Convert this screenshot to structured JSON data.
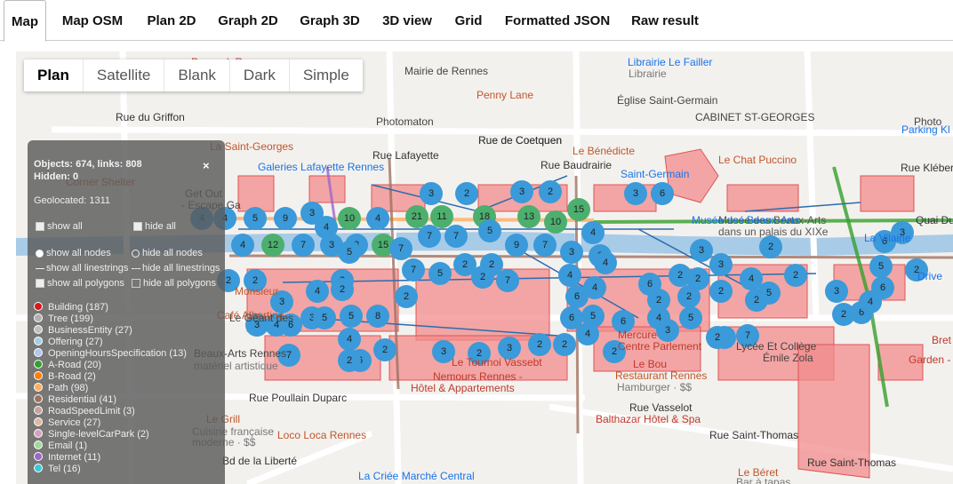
{
  "tabs": [
    "Map",
    "Map OSM",
    "Plan 2D",
    "Graph 2D",
    "Graph 3D",
    "3D view",
    "Grid",
    "Formatted JSON",
    "Raw result"
  ],
  "active_tab": "Map",
  "map_types": [
    "Plan",
    "Satellite",
    "Blank",
    "Dark",
    "Simple"
  ],
  "panel": {
    "objects_line": "Objects: 674, links: 808",
    "hidden_line": "Hidden: 0",
    "geolocated_line": "Geolocated: 1311",
    "close": "×",
    "show_all": "show all",
    "hide_all": "hide all",
    "show_all_nodes": "show all nodes",
    "hide_all_nodes": "hide all nodes",
    "show_all_linestrings": "show all linestrings",
    "hide_all_linestrings": "hide all linestrings",
    "show_all_polygons": "show all polygons",
    "hide_all_polygons": "hide all polygons",
    "legend": [
      {
        "label": "Building (187)",
        "color": "#d7191c"
      },
      {
        "label": "Tree (199)",
        "color": "#b0b0b0"
      },
      {
        "label": "BusinessEntity (27)",
        "color": "#c0c0c0"
      },
      {
        "label": "Offering (27)",
        "color": "#a6cee3"
      },
      {
        "label": "OpeningHoursSpecification (13)",
        "color": "#b2c6ee"
      },
      {
        "label": "A-Road (20)",
        "color": "#33a02c"
      },
      {
        "label": "B-Road (2)",
        "color": "#ff7f00"
      },
      {
        "label": "Path (98)",
        "color": "#fdae61"
      },
      {
        "label": "Residential (41)",
        "color": "#a07060"
      },
      {
        "label": "RoadSpeedLimit (3)",
        "color": "#c9a0a0"
      },
      {
        "label": "Service (27)",
        "color": "#e0b8a0"
      },
      {
        "label": "Single-levelCarPark (2)",
        "color": "#d9a0c0"
      },
      {
        "label": "Email (1)",
        "color": "#a1d99b"
      },
      {
        "label": "Internet (11)",
        "color": "#9e66c7"
      },
      {
        "label": "Tel (16)",
        "color": "#3ec9d6"
      }
    ]
  },
  "map_labels": [
    {
      "text": "Peacock Rennes",
      "color": "#c0392b"
    },
    {
      "text": "Mairie de Rennes",
      "color": "#444"
    },
    {
      "text": "Librairie Le Failler",
      "color": "#1a73e8"
    },
    {
      "text": "Librairie",
      "color": "#777"
    },
    {
      "text": "Penny Lane",
      "color": "#c0562b"
    },
    {
      "text": "Église Saint-Germain",
      "color": "#444"
    },
    {
      "text": "CABINET ST-GEORGES",
      "color": "#444"
    },
    {
      "text": "Parking Kl",
      "color": "#1a73e8"
    },
    {
      "text": "Rue du Griffon",
      "color": "#333"
    },
    {
      "text": "Photomaton",
      "color": "#444"
    },
    {
      "text": "Rue de Coetquen",
      "color": "#333"
    },
    {
      "text": "Le Bénédicte",
      "color": "#c0562b"
    },
    {
      "text": "Le Chat Puccino",
      "color": "#c0562b"
    },
    {
      "text": "La Saint-Georges",
      "color": "#c0562b"
    },
    {
      "text": "Galeries Lafayette Rennes",
      "color": "#1a73e8"
    },
    {
      "text": "Rue Kléber",
      "color": "#333"
    },
    {
      "text": "Saint-Germain",
      "color": "#1a73e8"
    },
    {
      "text": "La Vilaine",
      "color": "#1a73e8"
    },
    {
      "text": "Quai Du",
      "color": "#333"
    },
    {
      "text": "Musée des Beaux-Arts",
      "color": "#555"
    },
    {
      "text": "dans un palais du XIXe",
      "color": "#555"
    },
    {
      "text": "Café Albertine",
      "color": "#c0562b"
    },
    {
      "text": "Le Géant des",
      "color": "#444"
    },
    {
      "text": "Beaux-Arts Rennes",
      "color": "#444"
    },
    {
      "text": "matériel artistique",
      "color": "#777"
    },
    {
      "text": "Mercure",
      "color": "#c0392b"
    },
    {
      "text": "Centre Parlement",
      "color": "#c0392b"
    },
    {
      "text": "Lycée Et Collège",
      "color": "#444"
    },
    {
      "text": "Émile Zola",
      "color": "#444"
    },
    {
      "text": "Garden -",
      "color": "#c0392b"
    },
    {
      "text": "Le Tournoi Vassebt",
      "color": "#c0392b"
    },
    {
      "text": "Nemours Rennes -",
      "color": "#c0392b"
    },
    {
      "text": "Hôtel & Appartements",
      "color": "#c0392b"
    },
    {
      "text": "Restaurant Rennes",
      "color": "#c0562b"
    },
    {
      "text": "Hamburger · $$",
      "color": "#777"
    },
    {
      "text": "Rue Poullain Duparc",
      "color": "#333"
    },
    {
      "text": "Rue Vasselot",
      "color": "#333"
    },
    {
      "text": "Balthazar Hôtel & Spa",
      "color": "#c0392b"
    },
    {
      "text": "Le Grill",
      "color": "#c0562b"
    },
    {
      "text": "Cuisine française",
      "color": "#777"
    },
    {
      "text": "moderne · $$",
      "color": "#777"
    },
    {
      "text": "Loco Loca Rennes",
      "color": "#c0562b"
    },
    {
      "text": "Rue Saint-Thomas",
      "color": "#333"
    },
    {
      "text": "Rue Saint-Thomas",
      "color": "#333"
    },
    {
      "text": "Le Béret",
      "color": "#c0562b"
    },
    {
      "text": "Bar à tapas",
      "color": "#777"
    },
    {
      "text": "La Criée Marché Central",
      "color": "#1a73e8"
    },
    {
      "text": "Bd de la Liberté",
      "color": "#333"
    },
    {
      "text": "Rue Lafayette",
      "color": "#333"
    },
    {
      "text": "Rue Baudrairie",
      "color": "#333"
    },
    {
      "text": "Photo",
      "color": "#444"
    },
    {
      "text": "Drive",
      "color": "#1a73e8"
    },
    {
      "text": "Bret",
      "color": "#c0392b"
    },
    {
      "text": "Monsieur",
      "color": "#c0562b"
    },
    {
      "text": "Get Out",
      "color": "#444"
    },
    {
      "text": "- Escape Ga",
      "color": "#444"
    },
    {
      "text": "Corner Shelter",
      "color": "#c0562b"
    },
    {
      "text": "Le Bou",
      "color": "#c0392b"
    },
    {
      "text": "Rue de Coetquen",
      "color": "#333"
    },
    {
      "text": "Musée des Beaux-Arts",
      "color": "#1a73e8"
    }
  ],
  "markers": [
    {
      "n": "4",
      "c": "#3b9ad9"
    },
    {
      "n": "4",
      "c": "#3b9ad9"
    },
    {
      "n": "5",
      "c": "#3b9ad9"
    },
    {
      "n": "9",
      "c": "#3b9ad9"
    },
    {
      "n": "3",
      "c": "#3b9ad9"
    },
    {
      "n": "4",
      "c": "#3b9ad9"
    },
    {
      "n": "10",
      "c": "#4caf6e"
    },
    {
      "n": "4",
      "c": "#3b9ad9"
    },
    {
      "n": "21",
      "c": "#4caf6e"
    },
    {
      "n": "11",
      "c": "#4caf6e"
    },
    {
      "n": "18",
      "c": "#4caf6e"
    },
    {
      "n": "13",
      "c": "#4caf6e"
    },
    {
      "n": "10",
      "c": "#4caf6e"
    },
    {
      "n": "15",
      "c": "#4caf6e"
    },
    {
      "n": "3",
      "c": "#3b9ad9"
    },
    {
      "n": "2",
      "c": "#3b9ad9"
    },
    {
      "n": "3",
      "c": "#3b9ad9"
    },
    {
      "n": "2",
      "c": "#3b9ad9"
    },
    {
      "n": "3",
      "c": "#3b9ad9"
    },
    {
      "n": "6",
      "c": "#3b9ad9"
    },
    {
      "n": "4",
      "c": "#3b9ad9"
    },
    {
      "n": "12",
      "c": "#4caf6e"
    },
    {
      "n": "7",
      "c": "#3b9ad9"
    },
    {
      "n": "3",
      "c": "#3b9ad9"
    },
    {
      "n": "8",
      "c": "#3b9ad9"
    },
    {
      "n": "15",
      "c": "#4caf6e"
    },
    {
      "n": "7",
      "c": "#3b9ad9"
    },
    {
      "n": "7",
      "c": "#3b9ad9"
    },
    {
      "n": "7",
      "c": "#3b9ad9"
    },
    {
      "n": "5",
      "c": "#3b9ad9"
    },
    {
      "n": "9",
      "c": "#3b9ad9"
    },
    {
      "n": "7",
      "c": "#3b9ad9"
    },
    {
      "n": "3",
      "c": "#3b9ad9"
    },
    {
      "n": "4",
      "c": "#3b9ad9"
    },
    {
      "n": "6",
      "c": "#3b9ad9"
    },
    {
      "n": "2",
      "c": "#3b9ad9"
    },
    {
      "n": "2",
      "c": "#3b9ad9"
    },
    {
      "n": "5",
      "c": "#3b9ad9"
    },
    {
      "n": "2",
      "c": "#3b9ad9"
    },
    {
      "n": "7",
      "c": "#3b9ad9"
    },
    {
      "n": "5",
      "c": "#3b9ad9"
    },
    {
      "n": "3",
      "c": "#3b9ad9"
    },
    {
      "n": "4",
      "c": "#3b9ad9"
    },
    {
      "n": "3",
      "c": "#3b9ad9"
    },
    {
      "n": "6",
      "c": "#3b9ad9"
    },
    {
      "n": "5",
      "c": "#3b9ad9"
    },
    {
      "n": "5",
      "c": "#3b9ad9"
    },
    {
      "n": "8",
      "c": "#3b9ad9"
    },
    {
      "n": "7",
      "c": "#3b9ad9"
    },
    {
      "n": "2",
      "c": "#3b9ad9"
    },
    {
      "n": "4",
      "c": "#3b9ad9"
    },
    {
      "n": "4",
      "c": "#3b9ad9"
    },
    {
      "n": "4",
      "c": "#3b9ad9"
    },
    {
      "n": "6",
      "c": "#3b9ad9"
    },
    {
      "n": "5",
      "c": "#3b9ad9"
    },
    {
      "n": "6",
      "c": "#3b9ad9"
    },
    {
      "n": "4",
      "c": "#3b9ad9"
    },
    {
      "n": "2",
      "c": "#3b9ad9"
    },
    {
      "n": "6",
      "c": "#3b9ad9"
    },
    {
      "n": "6",
      "c": "#3b9ad9"
    },
    {
      "n": "2",
      "c": "#3b9ad9"
    },
    {
      "n": "3",
      "c": "#3b9ad9"
    },
    {
      "n": "2",
      "c": "#3b9ad9"
    },
    {
      "n": "2",
      "c": "#3b9ad9"
    },
    {
      "n": "2",
      "c": "#3b9ad9"
    },
    {
      "n": "2",
      "c": "#3b9ad9"
    },
    {
      "n": "3",
      "c": "#3b9ad9"
    },
    {
      "n": "3",
      "c": "#3b9ad9"
    },
    {
      "n": "4",
      "c": "#3b9ad9"
    },
    {
      "n": "2",
      "c": "#3b9ad9"
    },
    {
      "n": "2",
      "c": "#3b9ad9"
    },
    {
      "n": "3",
      "c": "#3b9ad9"
    },
    {
      "n": "2",
      "c": "#3b9ad9"
    },
    {
      "n": "6",
      "c": "#3b9ad9"
    },
    {
      "n": "4",
      "c": "#3b9ad9"
    },
    {
      "n": "6",
      "c": "#3b9ad9"
    },
    {
      "n": "5",
      "c": "#3b9ad9"
    },
    {
      "n": "6",
      "c": "#3b9ad9"
    },
    {
      "n": "3",
      "c": "#3b9ad9"
    },
    {
      "n": "2",
      "c": "#3b9ad9"
    },
    {
      "n": "2",
      "c": "#3b9ad9"
    },
    {
      "n": "5",
      "c": "#3b9ad9"
    },
    {
      "n": "5",
      "c": "#3b9ad9"
    },
    {
      "n": "7",
      "c": "#3b9ad9"
    },
    {
      "n": "2",
      "c": "#3b9ad9"
    },
    {
      "n": "2",
      "c": "#3b9ad9"
    },
    {
      "n": "4",
      "c": "#3b9ad9"
    },
    {
      "n": "2",
      "c": "#3b9ad9"
    },
    {
      "n": "2",
      "c": "#3b9ad9"
    },
    {
      "n": "3",
      "c": "#3b9ad9"
    },
    {
      "n": "2",
      "c": "#3b9ad9"
    },
    {
      "n": "3",
      "c": "#3b9ad9"
    },
    {
      "n": "4",
      "c": "#3b9ad9"
    },
    {
      "n": "6",
      "c": "#3b9ad9"
    },
    {
      "n": "2",
      "c": "#3b9ad9"
    },
    {
      "n": "2",
      "c": "#3b9ad9"
    },
    {
      "n": "7",
      "c": "#3b9ad9"
    },
    {
      "n": "3",
      "c": "#3b9ad9"
    },
    {
      "n": "2",
      "c": "#3b9ad9"
    },
    {
      "n": "2",
      "c": "#3b9ad9"
    },
    {
      "n": "3",
      "c": "#3b9ad9"
    },
    {
      "n": "4",
      "c": "#3b9ad9"
    },
    {
      "n": "2",
      "c": "#3b9ad9"
    }
  ]
}
